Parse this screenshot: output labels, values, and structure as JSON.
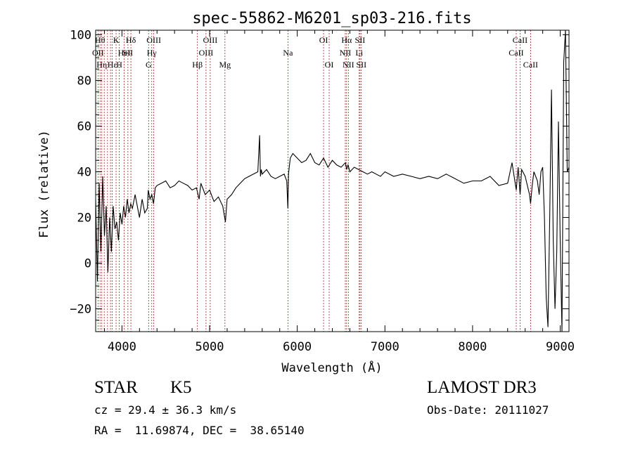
{
  "chart_data": {
    "type": "line",
    "title": "spec-55862-M6201_sp03-216.fits",
    "xlabel": "Wavelength (Å)",
    "ylabel": "Flux (relative)",
    "xlim": [
      3700,
      9100
    ],
    "ylim": [
      -30,
      102
    ],
    "xticks": [
      4000,
      5000,
      6000,
      7000,
      8000,
      9000
    ],
    "yticks": [
      -20,
      0,
      20,
      40,
      60,
      80,
      100
    ],
    "grid": false,
    "line_color": "#000000",
    "marker_color": "#b22222",
    "series": [
      {
        "x": [
          3700,
          3720,
          3740,
          3760,
          3780,
          3800,
          3820,
          3840,
          3860,
          3880,
          3900,
          3920,
          3940,
          3960,
          3980,
          4000,
          4020,
          4040,
          4060,
          4080,
          4100,
          4120,
          4150,
          4180,
          4200,
          4230,
          4260,
          4290,
          4300,
          4320,
          4340,
          4360,
          4380,
          4400,
          4450,
          4500,
          4550,
          4600,
          4650,
          4700,
          4750,
          4800,
          4850,
          4880,
          4900,
          4950,
          5000,
          5050,
          5100,
          5150,
          5180,
          5200,
          5250,
          5300,
          5350,
          5400,
          5450,
          5500,
          5550,
          5570,
          5580,
          5590,
          5600,
          5650,
          5700,
          5750,
          5800,
          5850,
          5880,
          5893,
          5900,
          5920,
          5950,
          6000,
          6050,
          6100,
          6150,
          6200,
          6250,
          6300,
          6350,
          6400,
          6450,
          6500,
          6550,
          6563,
          6580,
          6600,
          6650,
          6700,
          6750,
          6800,
          6850,
          6900,
          6950,
          7000,
          7100,
          7200,
          7300,
          7400,
          7500,
          7600,
          7700,
          7800,
          7900,
          8000,
          8100,
          8200,
          8300,
          8400,
          8450,
          8498,
          8520,
          8542,
          8560,
          8600,
          8650,
          8662,
          8680,
          8700,
          8720,
          8740,
          8760,
          8780,
          8800,
          8820,
          8840,
          8860,
          8880,
          8900,
          8920,
          8940,
          8960,
          8980,
          9000,
          9020,
          9040,
          9060,
          9080,
          9100
        ],
        "values": [
          28,
          -8,
          35,
          5,
          38,
          12,
          25,
          -4,
          20,
          5,
          25,
          15,
          18,
          10,
          22,
          17,
          25,
          20,
          28,
          22,
          26,
          24,
          30,
          24,
          20,
          28,
          22,
          24,
          32,
          28,
          30,
          26,
          33,
          34,
          35,
          36,
          33,
          34,
          36,
          35,
          34,
          32,
          33,
          28,
          35,
          30,
          32,
          27,
          29,
          25,
          18,
          28,
          30,
          33,
          35,
          37,
          38,
          39,
          40,
          56,
          38,
          41,
          39,
          41,
          38,
          37,
          38,
          39,
          36,
          24,
          39,
          46,
          48,
          46,
          44,
          45,
          48,
          44,
          43,
          46,
          42,
          45,
          43,
          42,
          44,
          41,
          43,
          40,
          42,
          41,
          40,
          39,
          40,
          39,
          38,
          40,
          38,
          39,
          38,
          37,
          38,
          37,
          39,
          37,
          35,
          36,
          36,
          38,
          34,
          35,
          44,
          32,
          42,
          30,
          41,
          38,
          30,
          26,
          34,
          40,
          38,
          36,
          30,
          40,
          42,
          20,
          -15,
          -28,
          20,
          76,
          10,
          -20,
          5,
          62,
          10,
          -30,
          88,
          102,
          40,
          42
        ]
      }
    ],
    "lines": [
      {
        "x": 3727,
        "label": "OII",
        "row": 1
      },
      {
        "x": 3750,
        "label": "Hθ",
        "row": 0
      },
      {
        "x": 3770,
        "label": "Hη",
        "row": 2
      },
      {
        "x": 3798,
        "label": "",
        "row": 0
      },
      {
        "x": 3835,
        "label": "",
        "row": 0
      },
      {
        "x": 3869,
        "label": "",
        "row": 1
      },
      {
        "x": 3889,
        "label": "Hε",
        "row": 2
      },
      {
        "x": 3933,
        "label": "K",
        "row": 0
      },
      {
        "x": 3969,
        "label": "H",
        "row": 2
      },
      {
        "x": 4026,
        "label": "HeI",
        "row": 1
      },
      {
        "x": 4068,
        "label": "SII",
        "row": 1
      },
      {
        "x": 4102,
        "label": "Hδ",
        "row": 0
      },
      {
        "x": 4304,
        "label": "G",
        "row": 2
      },
      {
        "x": 4340,
        "label": "Hγ",
        "row": 1
      },
      {
        "x": 4363,
        "label": "OIII",
        "row": 0
      },
      {
        "x": 4861,
        "label": "Hβ",
        "row": 2
      },
      {
        "x": 4959,
        "label": "OIII",
        "row": 1
      },
      {
        "x": 5007,
        "label": "OIII",
        "row": 0
      },
      {
        "x": 5175,
        "label": "Mg",
        "row": 2
      },
      {
        "x": 5894,
        "label": "Na",
        "row": 1
      },
      {
        "x": 6300,
        "label": "OI",
        "row": 0
      },
      {
        "x": 6364,
        "label": "OI",
        "row": 2
      },
      {
        "x": 6548,
        "label": "NII",
        "row": 1
      },
      {
        "x": 6563,
        "label": "Hα",
        "row": 0
      },
      {
        "x": 6583,
        "label": "NII",
        "row": 2
      },
      {
        "x": 6707,
        "label": "Li",
        "row": 1
      },
      {
        "x": 6716,
        "label": "SII",
        "row": 0
      },
      {
        "x": 6731,
        "label": "SII",
        "row": 2
      },
      {
        "x": 8498,
        "label": "CaII",
        "row": 1
      },
      {
        "x": 8542,
        "label": "CaII",
        "row": 0
      },
      {
        "x": 8662,
        "label": "CaII",
        "row": 2
      }
    ]
  },
  "info": {
    "object_class": "STAR",
    "subclass": "K5",
    "survey": "LAMOST DR3",
    "redshift": "cz = 29.4 ± 36.3 km/s",
    "obs_date": "Obs-Date: 20111027",
    "coords": "RA =  11.69874, DEC =  38.65140"
  }
}
